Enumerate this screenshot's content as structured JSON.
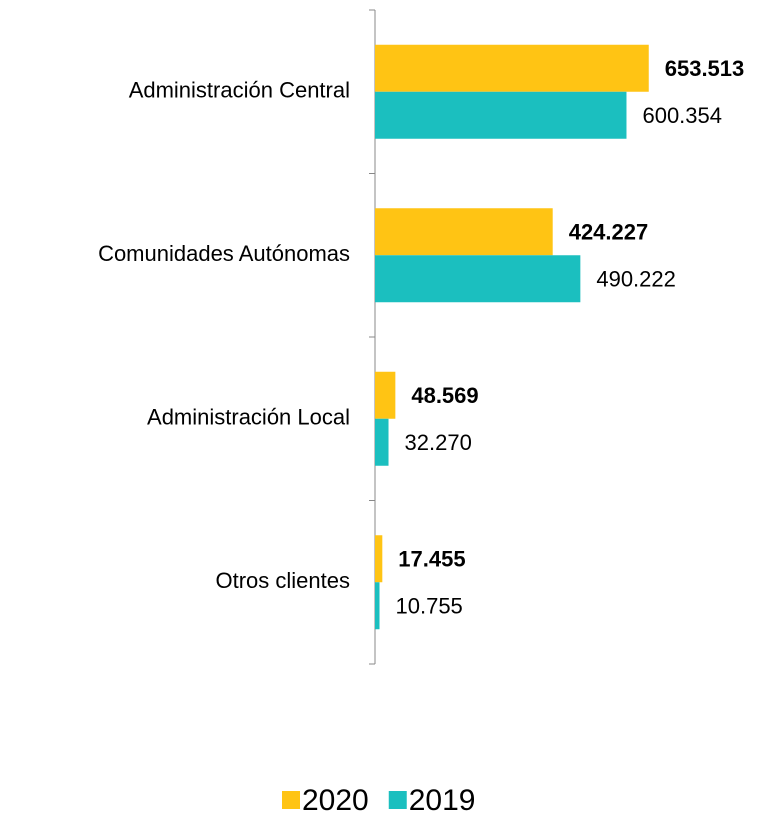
{
  "chart_data": {
    "type": "hbar",
    "categories": [
      "Administración Central",
      "Comunidades Autónomas",
      "Administración Local",
      "Otros clientes"
    ],
    "series": [
      {
        "name": "2020",
        "color": "#FFC414",
        "label_bold": true,
        "values": [
          653513,
          424227,
          48569,
          17455
        ],
        "value_labels": [
          "653.513",
          "424.227",
          "48.569",
          "17.455"
        ]
      },
      {
        "name": "2019",
        "color": "#1BBFBF",
        "label_bold": false,
        "values": [
          600354,
          490222,
          32270,
          10755
        ],
        "value_labels": [
          "600.354",
          "490.222",
          "32.270",
          "10.755"
        ]
      }
    ],
    "xlim": [
      0,
      900000
    ],
    "legend": "bottom"
  }
}
